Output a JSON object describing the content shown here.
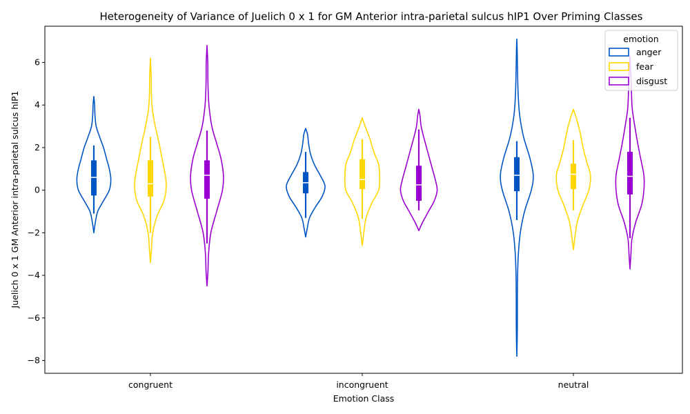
{
  "chart_data": {
    "type": "violin",
    "title": "Heterogeneity of Variance of Juelich 0 x 1 for GM Anterior intra-parietal sulcus hIP1 Over Priming Classes",
    "xlabel": "Emotion Class",
    "ylabel": "Juelich 0 x 1 GM Anterior intra-parietal sulcus hIP1",
    "categories": [
      "congruent",
      "incongruent",
      "neutral"
    ],
    "ylim": [
      -8.6,
      7.7
    ],
    "yticks": [
      -8,
      -6,
      -4,
      -2,
      0,
      2,
      4,
      6
    ],
    "ytick_labels": [
      "−8",
      "−6",
      "−4",
      "−2",
      "0",
      "2",
      "4",
      "6"
    ],
    "grid": false,
    "legend": {
      "title": "emotion",
      "position": "top-right"
    },
    "series": [
      {
        "name": "anger",
        "color": "#0055c4",
        "groups": [
          {
            "min": -2.0,
            "max": 4.4,
            "whisker_low": -1.1,
            "whisker_high": 2.1,
            "q1": -0.25,
            "median": 0.6,
            "q3": 1.4,
            "profile": [
              [
                -2.0,
                0.0
              ],
              [
                -1.5,
                0.08
              ],
              [
                -1.0,
                0.2
              ],
              [
                -0.5,
                0.5
              ],
              [
                0.0,
                0.8
              ],
              [
                0.5,
                0.88
              ],
              [
                1.0,
                0.8
              ],
              [
                1.5,
                0.65
              ],
              [
                2.0,
                0.5
              ],
              [
                2.5,
                0.3
              ],
              [
                3.0,
                0.12
              ],
              [
                3.5,
                0.06
              ],
              [
                4.0,
                0.04
              ],
              [
                4.4,
                0.0
              ]
            ]
          },
          {
            "min": -2.2,
            "max": 2.9,
            "whisker_low": -1.3,
            "whisker_high": 1.8,
            "q1": -0.15,
            "median": 0.35,
            "q3": 0.85,
            "profile": [
              [
                -2.2,
                0.0
              ],
              [
                -1.8,
                0.08
              ],
              [
                -1.3,
                0.2
              ],
              [
                -0.8,
                0.5
              ],
              [
                -0.3,
                0.85
              ],
              [
                0.2,
                1.0
              ],
              [
                0.7,
                0.75
              ],
              [
                1.2,
                0.45
              ],
              [
                1.7,
                0.25
              ],
              [
                2.2,
                0.15
              ],
              [
                2.6,
                0.1
              ],
              [
                2.9,
                0.0
              ]
            ]
          },
          {
            "min": -7.8,
            "max": 7.1,
            "whisker_low": -1.4,
            "whisker_high": 2.3,
            "q1": -0.05,
            "median": 0.7,
            "q3": 1.55,
            "profile": [
              [
                -7.8,
                0.0
              ],
              [
                -7.0,
                0.02
              ],
              [
                -6.0,
                0.03
              ],
              [
                -5.0,
                0.03
              ],
              [
                -4.0,
                0.04
              ],
              [
                -3.0,
                0.08
              ],
              [
                -2.0,
                0.18
              ],
              [
                -1.0,
                0.4
              ],
              [
                0.0,
                0.75
              ],
              [
                0.7,
                0.85
              ],
              [
                1.5,
                0.68
              ],
              [
                2.5,
                0.35
              ],
              [
                3.5,
                0.15
              ],
              [
                4.5,
                0.07
              ],
              [
                5.5,
                0.04
              ],
              [
                6.5,
                0.02
              ],
              [
                7.1,
                0.0
              ]
            ]
          }
        ]
      },
      {
        "name": "fear",
        "color": "#ffd700",
        "groups": [
          {
            "min": -3.4,
            "max": 6.2,
            "whisker_low": -2.0,
            "whisker_high": 2.5,
            "q1": -0.3,
            "median": 0.3,
            "q3": 1.4,
            "profile": [
              [
                -3.4,
                0.0
              ],
              [
                -2.8,
                0.05
              ],
              [
                -2.0,
                0.12
              ],
              [
                -1.2,
                0.35
              ],
              [
                -0.5,
                0.7
              ],
              [
                0.2,
                0.82
              ],
              [
                0.8,
                0.75
              ],
              [
                1.5,
                0.6
              ],
              [
                2.2,
                0.45
              ],
              [
                3.0,
                0.25
              ],
              [
                3.8,
                0.1
              ],
              [
                4.5,
                0.05
              ],
              [
                5.3,
                0.04
              ],
              [
                6.2,
                0.0
              ]
            ]
          },
          {
            "min": -2.6,
            "max": 3.4,
            "whisker_low": -1.35,
            "whisker_high": 2.4,
            "q1": 0.05,
            "median": 0.5,
            "q3": 1.45,
            "profile": [
              [
                -2.6,
                0.0
              ],
              [
                -2.0,
                0.08
              ],
              [
                -1.3,
                0.2
              ],
              [
                -0.6,
                0.5
              ],
              [
                0.0,
                0.85
              ],
              [
                0.6,
                0.9
              ],
              [
                1.2,
                0.85
              ],
              [
                1.8,
                0.6
              ],
              [
                2.4,
                0.4
              ],
              [
                3.0,
                0.15
              ],
              [
                3.4,
                0.0
              ]
            ]
          },
          {
            "min": -2.8,
            "max": 3.8,
            "whisker_low": -0.95,
            "whisker_high": 2.35,
            "q1": 0.05,
            "median": 0.75,
            "q3": 1.25,
            "profile": [
              [
                -2.8,
                0.0
              ],
              [
                -2.2,
                0.08
              ],
              [
                -1.5,
                0.2
              ],
              [
                -0.8,
                0.45
              ],
              [
                0.0,
                0.8
              ],
              [
                0.7,
                0.88
              ],
              [
                1.3,
                0.7
              ],
              [
                2.0,
                0.5
              ],
              [
                2.7,
                0.35
              ],
              [
                3.3,
                0.18
              ],
              [
                3.8,
                0.0
              ]
            ]
          }
        ]
      },
      {
        "name": "disgust",
        "color": "#9b00d3",
        "groups": [
          {
            "min": -4.5,
            "max": 6.8,
            "whisker_low": -2.5,
            "whisker_high": 2.8,
            "q1": -0.4,
            "median": 0.7,
            "q3": 1.4,
            "profile": [
              [
                -4.5,
                0.0
              ],
              [
                -3.8,
                0.05
              ],
              [
                -3.0,
                0.08
              ],
              [
                -2.0,
                0.2
              ],
              [
                -1.0,
                0.5
              ],
              [
                0.0,
                0.8
              ],
              [
                0.7,
                0.85
              ],
              [
                1.5,
                0.72
              ],
              [
                2.2,
                0.5
              ],
              [
                3.0,
                0.25
              ],
              [
                4.0,
                0.1
              ],
              [
                5.0,
                0.05
              ],
              [
                6.0,
                0.04
              ],
              [
                6.8,
                0.0
              ]
            ]
          },
          {
            "min": -1.9,
            "max": 3.8,
            "whisker_low": -0.95,
            "whisker_high": 2.85,
            "q1": -0.5,
            "median": 0.25,
            "q3": 1.15,
            "profile": [
              [
                -1.9,
                0.0
              ],
              [
                -1.5,
                0.2
              ],
              [
                -1.0,
                0.5
              ],
              [
                -0.5,
                0.8
              ],
              [
                0.0,
                0.95
              ],
              [
                0.5,
                0.85
              ],
              [
                1.0,
                0.7
              ],
              [
                1.5,
                0.55
              ],
              [
                2.0,
                0.4
              ],
              [
                2.5,
                0.25
              ],
              [
                3.0,
                0.12
              ],
              [
                3.5,
                0.06
              ],
              [
                3.8,
                0.0
              ]
            ]
          },
          {
            "min": -3.7,
            "max": 6.3,
            "whisker_low": -2.25,
            "whisker_high": 3.4,
            "q1": -0.2,
            "median": 0.65,
            "q3": 1.8,
            "profile": [
              [
                -3.7,
                0.0
              ],
              [
                -3.0,
                0.05
              ],
              [
                -2.3,
                0.1
              ],
              [
                -1.5,
                0.3
              ],
              [
                -0.7,
                0.6
              ],
              [
                0.0,
                0.72
              ],
              [
                0.7,
                0.72
              ],
              [
                1.5,
                0.55
              ],
              [
                2.2,
                0.4
              ],
              [
                3.0,
                0.25
              ],
              [
                3.8,
                0.12
              ],
              [
                4.5,
                0.08
              ],
              [
                5.3,
                0.05
              ],
              [
                6.3,
                0.0
              ]
            ]
          }
        ]
      }
    ]
  }
}
